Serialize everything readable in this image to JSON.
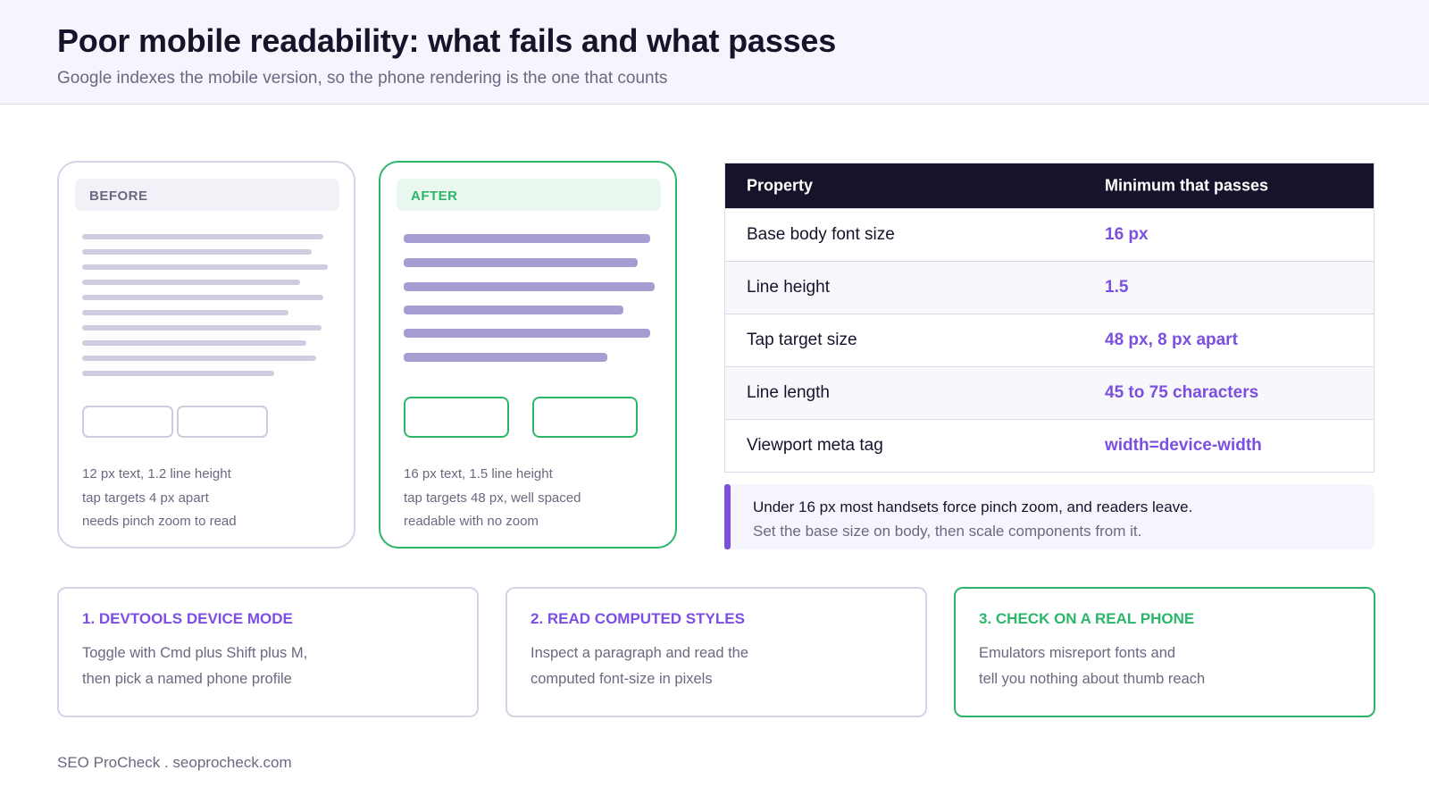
{
  "header": {
    "title": "Poor mobile readability: what fails and what passes",
    "subtitle": "Google indexes the mobile version, so the phone rendering is the one that counts"
  },
  "before": {
    "label": "BEFORE",
    "notes": [
      "12 px text, 1.2 line height",
      "tap targets 4 px apart",
      "needs pinch zoom to read"
    ]
  },
  "after": {
    "label": "AFTER",
    "notes": [
      "16 px text, 1.5 line height",
      "tap targets 48 px, well spaced",
      "readable with no zoom"
    ]
  },
  "table": {
    "headers": [
      "Property",
      "Minimum that passes"
    ],
    "rows": [
      [
        "Base body font size",
        "16 px"
      ],
      [
        "Line height",
        "1.5"
      ],
      [
        "Tap target size",
        "48 px, 8 px apart"
      ],
      [
        "Line length",
        "45 to 75 characters"
      ],
      [
        "Viewport meta tag",
        "width=device-width"
      ]
    ]
  },
  "callout": {
    "line1": "Under 16 px most handsets force pinch zoom, and readers leave.",
    "line2": "Set the base size on body, then scale components from it."
  },
  "steps": [
    {
      "title": "1. DEVTOOLS DEVICE MODE",
      "lines": [
        "Toggle with Cmd plus Shift plus M,",
        "then pick a named phone profile"
      ]
    },
    {
      "title": "2. READ COMPUTED STYLES",
      "lines": [
        "Inspect a paragraph and read the",
        "computed font-size in pixels"
      ]
    },
    {
      "title": "3. CHECK ON A REAL PHONE",
      "lines": [
        "Emulators misreport fonts and",
        "tell you nothing about thumb reach"
      ]
    }
  ],
  "footer": "SEO ProCheck . seoprocheck.com",
  "colors": {
    "accent": "#7b4fe0",
    "pass": "#2cb56b",
    "dark": "#17132a",
    "muted": "#6b6880"
  }
}
